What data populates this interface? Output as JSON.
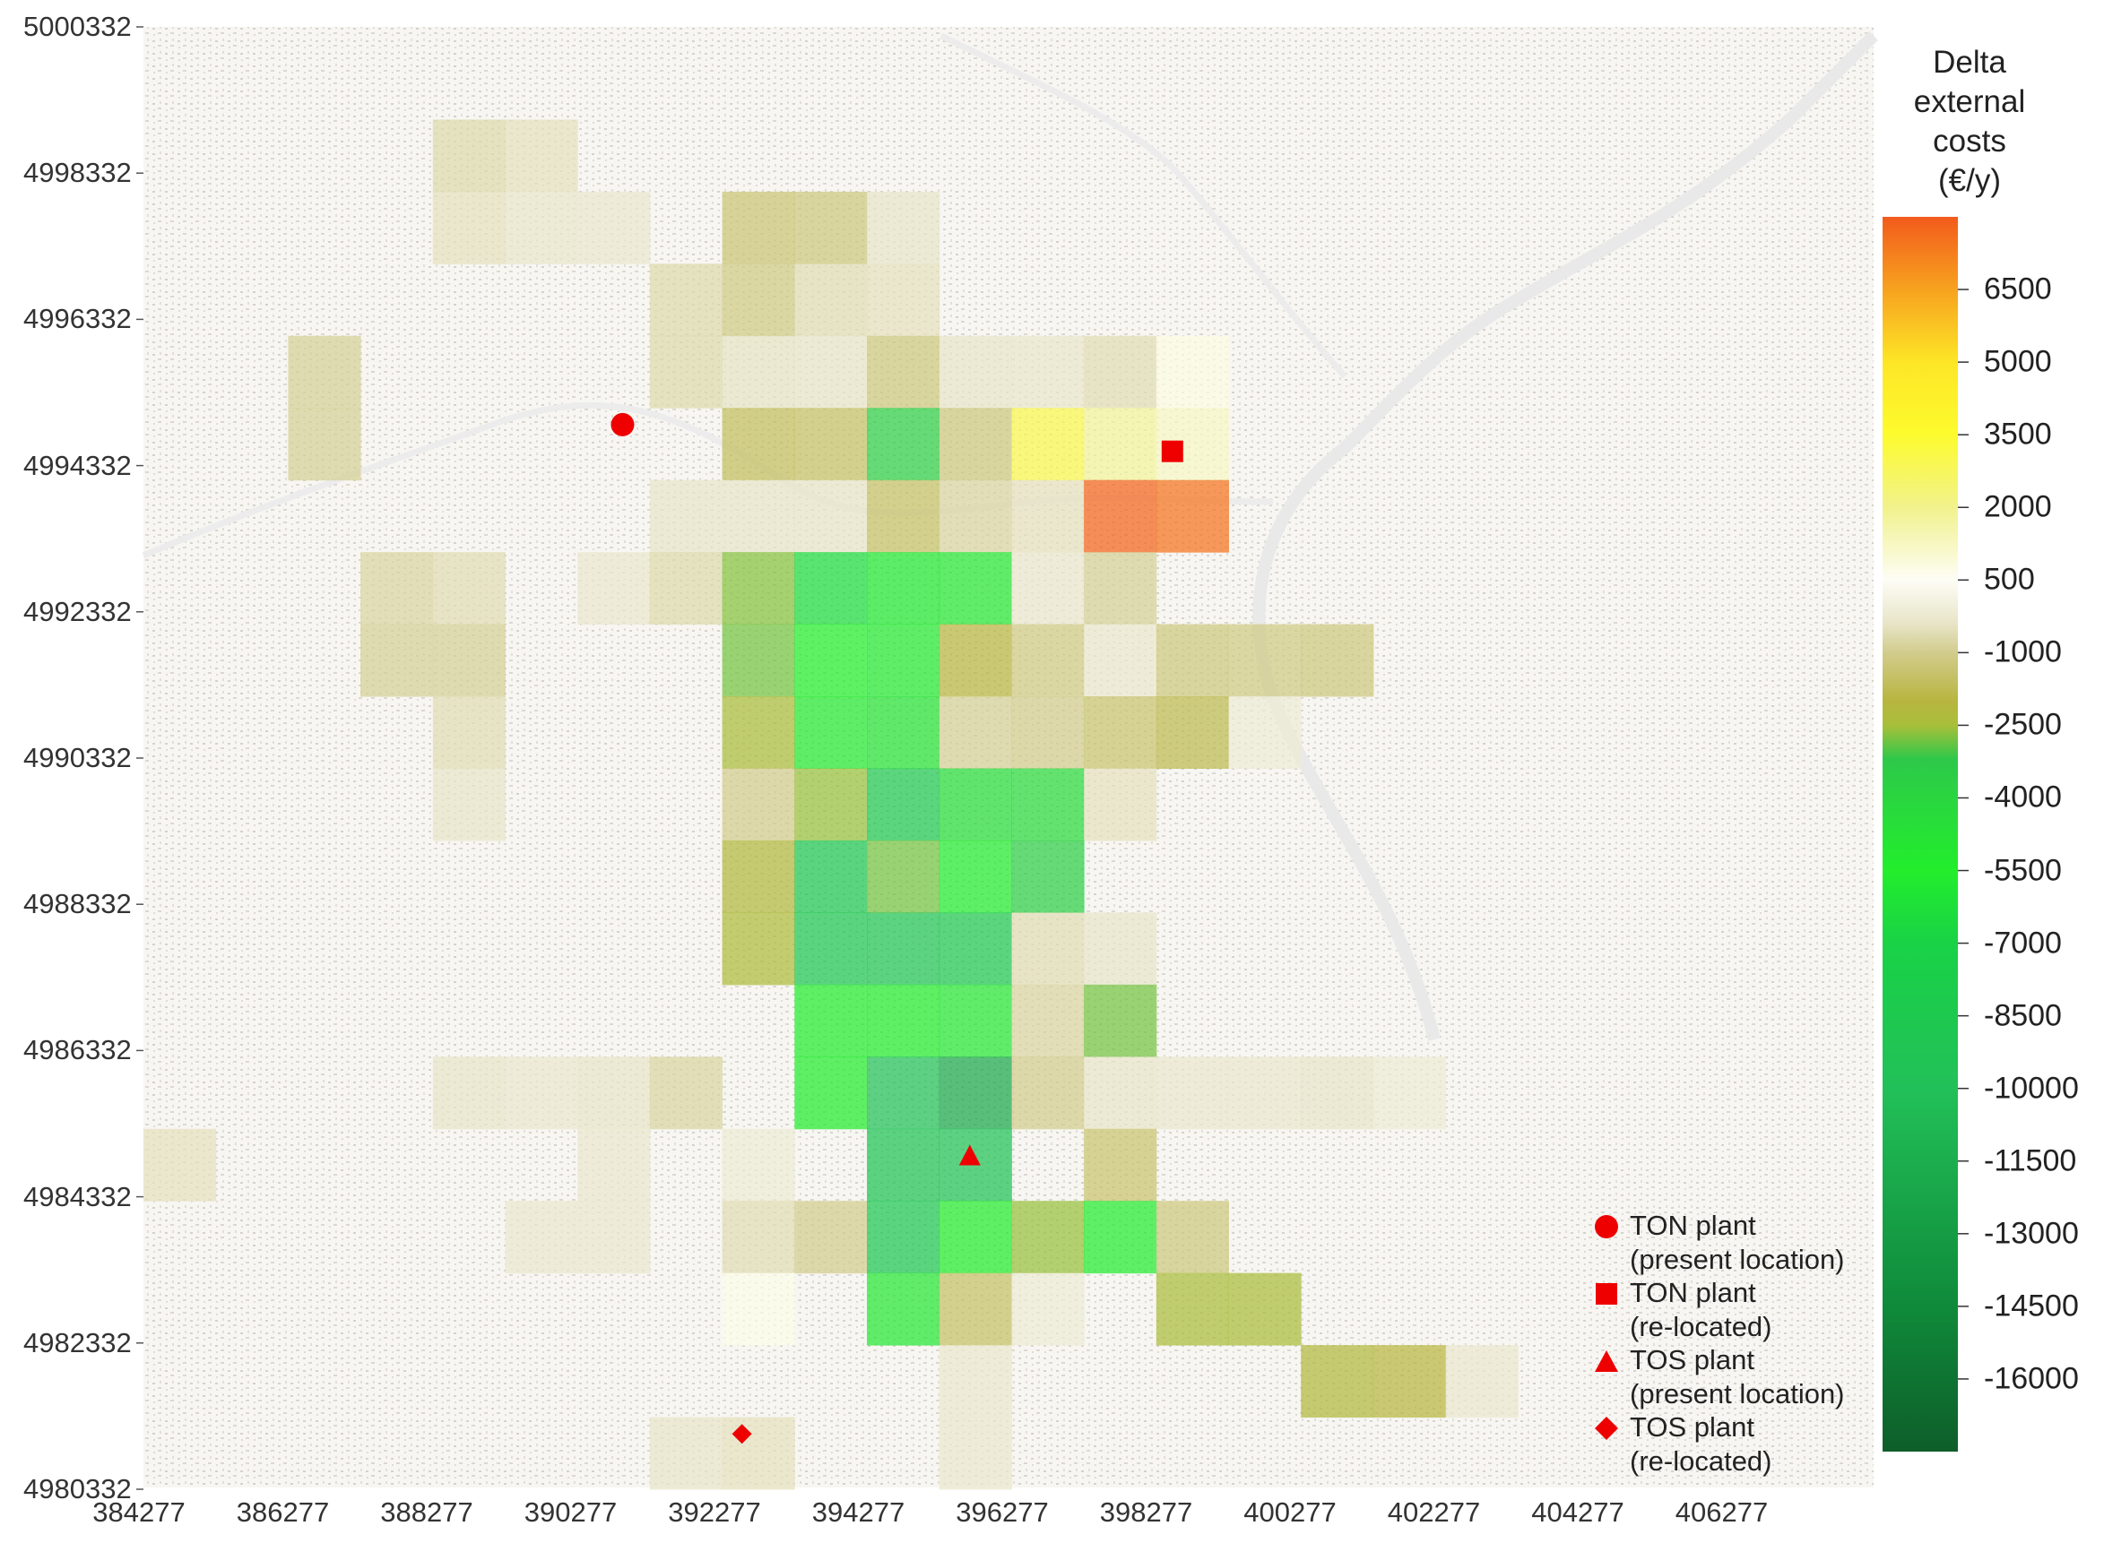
{
  "colorbar": {
    "title_lines": [
      "Delta",
      "external",
      "costs",
      "(€/y)"
    ],
    "labels": [
      "6500",
      "5000",
      "3500",
      "2000",
      "500",
      "-1000",
      "-2500",
      "-4000",
      "-5500",
      "-7000",
      "-8500",
      "-10000",
      "-11500",
      "-13000",
      "-14500",
      "-16000"
    ],
    "min": -17500,
    "max": 8000,
    "stops": [
      {
        "value": 8000,
        "color": "#f25b1c"
      },
      {
        "value": 6500,
        "color": "#f7a21f"
      },
      {
        "value": 5000,
        "color": "#fde626"
      },
      {
        "value": 3500,
        "color": "#fdfb2e"
      },
      {
        "value": 2000,
        "color": "#f1f28c"
      },
      {
        "value": 500,
        "color": "#fdfdf6"
      },
      {
        "value": -400,
        "color": "#e8e5c8"
      },
      {
        "value": -1000,
        "color": "#d2cc8c"
      },
      {
        "value": -2000,
        "color": "#b8b540"
      },
      {
        "value": -2500,
        "color": "#a8bf3a"
      },
      {
        "value": -3200,
        "color": "#2ec84a"
      },
      {
        "value": -5500,
        "color": "#22ee2c"
      },
      {
        "value": -7000,
        "color": "#19d246"
      },
      {
        "value": -10000,
        "color": "#22c058"
      },
      {
        "value": -14500,
        "color": "#0f8a3a"
      },
      {
        "value": -17500,
        "color": "#0e5e2a"
      }
    ]
  },
  "axes": {
    "x_ticks": [
      "384277",
      "386277",
      "388277",
      "390277",
      "392277",
      "394277",
      "396277",
      "398277",
      "400277",
      "402277",
      "404277",
      "406277"
    ],
    "y_ticks": [
      "5000332",
      "4998332",
      "4996332",
      "4994332",
      "4992332",
      "4990332",
      "4988332",
      "4986332",
      "4984332",
      "4982332",
      "4980332"
    ]
  },
  "legend": [
    {
      "symbol": "circle",
      "line1": "TON plant",
      "line2": "(present location)"
    },
    {
      "symbol": "square",
      "line1": "TON plant",
      "line2": "(re-located)"
    },
    {
      "symbol": "triangle",
      "line1": "TOS plant",
      "line2": "(present location)"
    },
    {
      "symbol": "diamond",
      "line1": "TOS plant",
      "line2": "(re-located)"
    }
  ],
  "plants": [
    {
      "name": "TON plant (present location)",
      "symbol": "circle",
      "x": 390900,
      "y": 4995100
    },
    {
      "name": "TON plant (re-located)",
      "symbol": "square",
      "x": 398500,
      "y": 4994730
    },
    {
      "name": "TOS plant (present location)",
      "symbol": "triangle",
      "x": 395700,
      "y": 4984950
    },
    {
      "name": "TOS plant (re-located)",
      "symbol": "diamond",
      "x": 392550,
      "y": 4981100
    }
  ],
  "marker_color": "#ee0000",
  "cell_size_m": 1000,
  "grid_origin": {
    "x": 384277,
    "y": 4980332
  },
  "cells": [
    [
      388277,
      4998332,
      -700
    ],
    [
      389277,
      4998332,
      -500
    ],
    [
      388277,
      4997332,
      -500
    ],
    [
      389277,
      4997332,
      -350
    ],
    [
      390277,
      4997332,
      -300
    ],
    [
      392277,
      4997332,
      -1300
    ],
    [
      393277,
      4997332,
      -1200
    ],
    [
      394277,
      4997332,
      -400
    ],
    [
      391277,
      4996332,
      -700
    ],
    [
      392277,
      4996332,
      -1100
    ],
    [
      393277,
      4996332,
      -600
    ],
    [
      394277,
      4996332,
      -500
    ],
    [
      386277,
      4995332,
      -900
    ],
    [
      391277,
      4995332,
      -700
    ],
    [
      392277,
      4995332,
      -450
    ],
    [
      393277,
      4995332,
      -400
    ],
    [
      394277,
      4995332,
      -1200
    ],
    [
      395277,
      4995332,
      -400
    ],
    [
      396277,
      4995332,
      -350
    ],
    [
      397277,
      4995332,
      -600
    ],
    [
      398277,
      4995332,
      800
    ],
    [
      386277,
      4994332,
      -900
    ],
    [
      392277,
      4994332,
      -1600
    ],
    [
      393277,
      4994332,
      -1500
    ],
    [
      394277,
      4994332,
      -3600
    ],
    [
      395277,
      4994332,
      -1200
    ],
    [
      396277,
      4994332,
      3000
    ],
    [
      397277,
      4994332,
      1800
    ],
    [
      398277,
      4994332,
      1200
    ],
    [
      391277,
      4993332,
      -400
    ],
    [
      392277,
      4993332,
      -400
    ],
    [
      393277,
      4993332,
      -400
    ],
    [
      394277,
      4993332,
      -1500
    ],
    [
      395277,
      4993332,
      -800
    ],
    [
      396277,
      4993332,
      -500
    ],
    [
      397277,
      4993332,
      7800
    ],
    [
      398277,
      4993332,
      7500
    ],
    [
      387277,
      4992332,
      -800
    ],
    [
      388277,
      4992332,
      -600
    ],
    [
      390277,
      4992332,
      -300
    ],
    [
      391277,
      4992332,
      -700
    ],
    [
      392277,
      4992332,
      -2700
    ],
    [
      393277,
      4992332,
      -6500
    ],
    [
      394277,
      4992332,
      -5800
    ],
    [
      395277,
      4992332,
      -5000
    ],
    [
      396277,
      4992332,
      -300
    ],
    [
      397277,
      4992332,
      -900
    ],
    [
      387277,
      4991332,
      -900
    ],
    [
      388277,
      4991332,
      -900
    ],
    [
      392277,
      4991332,
      -2800
    ],
    [
      393277,
      4991332,
      -5500
    ],
    [
      394277,
      4991332,
      -5200
    ],
    [
      395277,
      4991332,
      -2000
    ],
    [
      396277,
      4991332,
      -1100
    ],
    [
      397277,
      4991332,
      -300
    ],
    [
      398277,
      4991332,
      -1200
    ],
    [
      399277,
      4991332,
      -1100
    ],
    [
      400277,
      4991332,
      -1200
    ],
    [
      388277,
      4990332,
      -600
    ],
    [
      392277,
      4990332,
      -2400
    ],
    [
      393277,
      4990332,
      -5200
    ],
    [
      394277,
      4990332,
      -4800
    ],
    [
      395277,
      4990332,
      -900
    ],
    [
      396277,
      4990332,
      -1000
    ],
    [
      397277,
      4990332,
      -1400
    ],
    [
      398277,
      4990332,
      -1800
    ],
    [
      399277,
      4990332,
      -200
    ],
    [
      388277,
      4989332,
      -400
    ],
    [
      392277,
      4989332,
      -1000
    ],
    [
      393277,
      4989332,
      -2600
    ],
    [
      394277,
      4989332,
      -8600
    ],
    [
      395277,
      4989332,
      -4500
    ],
    [
      396277,
      4989332,
      -4200
    ],
    [
      397277,
      4989332,
      -500
    ],
    [
      392277,
      4988332,
      -2200
    ],
    [
      393277,
      4988332,
      -9000
    ],
    [
      394277,
      4988332,
      -2800
    ],
    [
      395277,
      4988332,
      -5600
    ],
    [
      396277,
      4988332,
      -3600
    ],
    [
      392277,
      4987332,
      -2300
    ],
    [
      393277,
      4987332,
      -9000
    ],
    [
      394277,
      4987332,
      -9200
    ],
    [
      395277,
      4987332,
      -8800
    ],
    [
      396277,
      4987332,
      -600
    ],
    [
      397277,
      4987332,
      -400
    ],
    [
      393277,
      4986332,
      -5400
    ],
    [
      394277,
      4986332,
      -5400
    ],
    [
      395277,
      4986332,
      -5000
    ],
    [
      396277,
      4986332,
      -800
    ],
    [
      397277,
      4986332,
      -2800
    ],
    [
      388277,
      4985332,
      -400
    ],
    [
      389277,
      4985332,
      -300
    ],
    [
      390277,
      4985332,
      -400
    ],
    [
      391277,
      4985332,
      -800
    ],
    [
      393277,
      4985332,
      -5400
    ],
    [
      394277,
      4985332,
      -9800
    ],
    [
      395277,
      4985332,
      -12000
    ],
    [
      396277,
      4985332,
      -1000
    ],
    [
      397277,
      4985332,
      -400
    ],
    [
      398277,
      4985332,
      -300
    ],
    [
      399277,
      4985332,
      -300
    ],
    [
      400277,
      4985332,
      -400
    ],
    [
      401277,
      4985332,
      -200
    ],
    [
      384277,
      4984332,
      -500
    ],
    [
      390277,
      4984332,
      -300
    ],
    [
      392277,
      4984332,
      -200
    ],
    [
      394277,
      4984332,
      -9400
    ],
    [
      395277,
      4984332,
      -9600
    ],
    [
      397277,
      4984332,
      -1400
    ],
    [
      389277,
      4983332,
      -300
    ],
    [
      390277,
      4983332,
      -300
    ],
    [
      392277,
      4983332,
      -600
    ],
    [
      393277,
      4983332,
      -1000
    ],
    [
      394277,
      4983332,
      -9000
    ],
    [
      395277,
      4983332,
      -5400
    ],
    [
      396277,
      4983332,
      -2600
    ],
    [
      397277,
      4983332,
      -5300
    ],
    [
      398277,
      4983332,
      -1200
    ],
    [
      392277,
      4982332,
      700
    ],
    [
      394277,
      4982332,
      -5000
    ],
    [
      395277,
      4982332,
      -1500
    ],
    [
      396277,
      4982332,
      -200
    ],
    [
      398277,
      4982332,
      -2400
    ],
    [
      399277,
      4982332,
      -2400
    ],
    [
      395277,
      4981332,
      -300
    ],
    [
      400277,
      4981332,
      -2200
    ],
    [
      401277,
      4981332,
      -2000
    ],
    [
      402277,
      4981332,
      -300
    ],
    [
      391277,
      4980332,
      -400
    ],
    [
      392277,
      4980332,
      -500
    ],
    [
      395277,
      4980332,
      -300
    ]
  ]
}
